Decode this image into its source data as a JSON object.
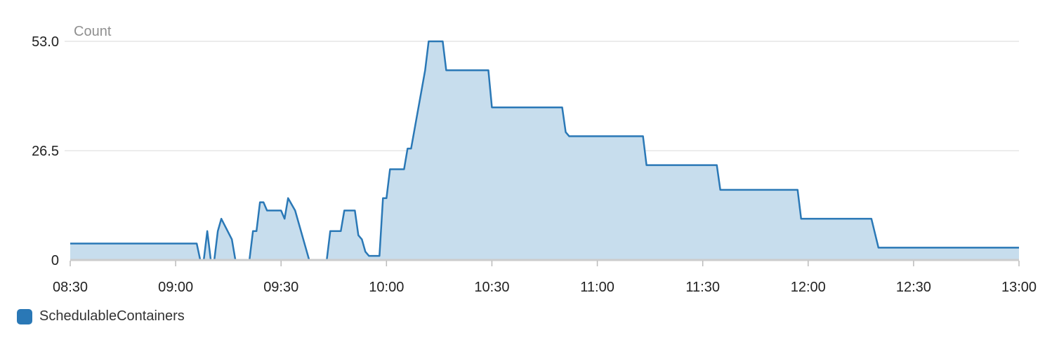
{
  "chart_data": {
    "type": "area",
    "ylabel": "Count",
    "ylim": [
      0,
      53.0
    ],
    "yticks": [
      "0",
      "26.5",
      "53.0"
    ],
    "ytick_values": [
      0,
      26.5,
      53.0
    ],
    "xlim": [
      "08:30",
      "13:00"
    ],
    "xticks": [
      "08:30",
      "09:00",
      "09:30",
      "10:00",
      "10:30",
      "11:00",
      "11:30",
      "12:00",
      "12:30",
      "13:00"
    ],
    "grid": true,
    "legend_position": "bottom-left",
    "series": [
      {
        "name": "SchedulableContainers",
        "color": "#2a78b6",
        "fill": "#c7dded",
        "points": [
          [
            "08:30",
            4
          ],
          [
            "09:06",
            4
          ],
          [
            "09:07",
            0
          ],
          [
            "09:08",
            0
          ],
          [
            "09:09",
            7
          ],
          [
            "09:10",
            0
          ],
          [
            "09:11",
            0
          ],
          [
            "09:12",
            7
          ],
          [
            "09:13",
            10
          ],
          [
            "09:16",
            5
          ],
          [
            "09:17",
            0
          ],
          [
            "09:21",
            0
          ],
          [
            "09:22",
            7
          ],
          [
            "09:23",
            7
          ],
          [
            "09:24",
            14
          ],
          [
            "09:25",
            14
          ],
          [
            "09:26",
            12
          ],
          [
            "09:30",
            12
          ],
          [
            "09:31",
            10
          ],
          [
            "09:32",
            15
          ],
          [
            "09:34",
            12
          ],
          [
            "09:37",
            3
          ],
          [
            "09:38",
            0
          ],
          [
            "09:43",
            0
          ],
          [
            "09:44",
            7
          ],
          [
            "09:47",
            7
          ],
          [
            "09:48",
            12
          ],
          [
            "09:51",
            12
          ],
          [
            "09:52",
            6
          ],
          [
            "09:53",
            5
          ],
          [
            "09:54",
            2
          ],
          [
            "09:55",
            1
          ],
          [
            "09:58",
            1
          ],
          [
            "09:59",
            15
          ],
          [
            "10:00",
            15
          ],
          [
            "10:01",
            22
          ],
          [
            "10:05",
            22
          ],
          [
            "10:06",
            27
          ],
          [
            "10:07",
            27
          ],
          [
            "10:11",
            46
          ],
          [
            "10:12",
            53
          ],
          [
            "10:16",
            53
          ],
          [
            "10:17",
            46
          ],
          [
            "10:29",
            46
          ],
          [
            "10:30",
            37
          ],
          [
            "10:50",
            37
          ],
          [
            "10:51",
            31
          ],
          [
            "10:52",
            30
          ],
          [
            "11:13",
            30
          ],
          [
            "11:14",
            23
          ],
          [
            "11:34",
            23
          ],
          [
            "11:35",
            17
          ],
          [
            "11:57",
            17
          ],
          [
            "11:58",
            10
          ],
          [
            "12:18",
            10
          ],
          [
            "12:20",
            3
          ],
          [
            "13:00",
            3
          ]
        ]
      }
    ]
  }
}
